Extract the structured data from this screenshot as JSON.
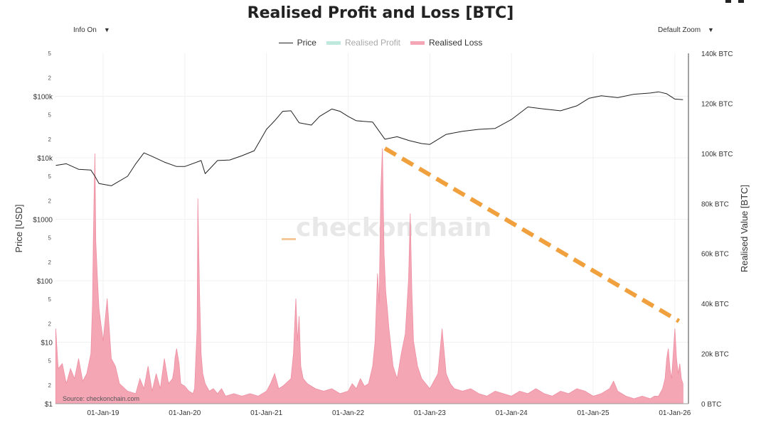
{
  "page": {
    "title": "Realised Profit and Loss [BTC]",
    "info_dropdown": "Info On",
    "zoom_dropdown": "Default Zoom",
    "caret": "▼"
  },
  "colors": {
    "price_line": "#222222",
    "realised_profit": "#bfe9dd",
    "realised_loss": "#f4a6b5",
    "trend_line": "#f0a03c",
    "watermark": "#e8e8e8"
  },
  "chart_data": {
    "type": "area",
    "title": "Realised Profit and Loss [BTC]",
    "legend": [
      "Price",
      "Realised Profit",
      "Realised Loss"
    ],
    "legend_placement": "top-center",
    "watermark": "checkonchain",
    "source": "Source: checkonchain.com",
    "x_axis": {
      "ticks": [
        "01-Jan-19",
        "01-Jan-20",
        "01-Jan-21",
        "01-Jan-22",
        "01-Jan-23",
        "01-Jan-24",
        "01-Jan-25",
        "01-Jan-26"
      ],
      "range": [
        "2018-06-01",
        "2026-03-01"
      ]
    },
    "y_left": {
      "label": "Price [USD]",
      "scale": "log",
      "range": [
        1,
        500000
      ],
      "major_ticks": [
        "$1",
        "$10",
        "$100",
        "$1000",
        "$10k",
        "$100k"
      ],
      "minor_ticks": [
        "2",
        "5"
      ]
    },
    "y_right": {
      "label": "Realised Value [BTC]",
      "range": [
        0,
        140000
      ],
      "ticks": [
        "0 BTC",
        "20k BTC",
        "40k BTC",
        "60k BTC",
        "80k BTC",
        "100k BTC",
        "120k BTC",
        "140k BTC"
      ]
    },
    "series": [
      {
        "name": "Price",
        "axis": "left",
        "x": [
          2018.42,
          2018.55,
          2018.7,
          2018.85,
          2018.9,
          2018.95,
          2019.1,
          2019.3,
          2019.4,
          2019.5,
          2019.6,
          2019.75,
          2019.9,
          2020.0,
          2020.2,
          2020.25,
          2020.4,
          2020.55,
          2020.7,
          2020.85,
          2021.0,
          2021.1,
          2021.2,
          2021.3,
          2021.4,
          2021.55,
          2021.65,
          2021.8,
          2021.9,
          2022.0,
          2022.1,
          2022.3,
          2022.45,
          2022.6,
          2022.75,
          2022.9,
          2023.0,
          2023.2,
          2023.4,
          2023.6,
          2023.8,
          2024.0,
          2024.2,
          2024.4,
          2024.6,
          2024.8,
          2024.95,
          2025.1,
          2025.3,
          2025.5,
          2025.7,
          2025.8,
          2025.9,
          2026.0,
          2026.1
        ],
        "values": [
          7500,
          8000,
          6500,
          6300,
          5000,
          3800,
          3500,
          5000,
          8000,
          12000,
          10500,
          8500,
          7200,
          7200,
          9000,
          5500,
          9000,
          9200,
          10800,
          13000,
          29000,
          40000,
          57000,
          58000,
          37000,
          34000,
          47000,
          62000,
          57000,
          47000,
          40000,
          38000,
          20000,
          22000,
          19000,
          17000,
          16500,
          24000,
          27000,
          29000,
          30000,
          42000,
          67000,
          62000,
          58000,
          70000,
          93000,
          102000,
          95000,
          108000,
          113000,
          118000,
          110000,
          90000,
          88000
        ]
      },
      {
        "name": "Realised Profit",
        "axis": "right",
        "x": [],
        "values": []
      },
      {
        "name": "Realised Loss",
        "axis": "right",
        "x": [
          2018.42,
          2018.45,
          2018.5,
          2018.55,
          2018.6,
          2018.65,
          2018.7,
          2018.75,
          2018.8,
          2018.85,
          2018.87,
          2018.88,
          2018.89,
          2018.9,
          2018.91,
          2018.93,
          2018.95,
          2019.0,
          2019.05,
          2019.1,
          2019.15,
          2019.2,
          2019.3,
          2019.4,
          2019.45,
          2019.5,
          2019.55,
          2019.6,
          2019.65,
          2019.7,
          2019.75,
          2019.8,
          2019.85,
          2019.87,
          2019.88,
          2019.9,
          2019.93,
          2019.95,
          2020.0,
          2020.05,
          2020.1,
          2020.12,
          2020.15,
          2020.16,
          2020.18,
          2020.2,
          2020.22,
          2020.25,
          2020.3,
          2020.35,
          2020.4,
          2020.45,
          2020.5,
          2020.6,
          2020.7,
          2020.8,
          2020.9,
          2021.0,
          2021.05,
          2021.1,
          2021.15,
          2021.2,
          2021.3,
          2021.33,
          2021.36,
          2021.38,
          2021.4,
          2021.42,
          2021.45,
          2021.5,
          2021.6,
          2021.7,
          2021.8,
          2021.9,
          2022.0,
          2022.05,
          2022.1,
          2022.15,
          2022.2,
          2022.25,
          2022.3,
          2022.33,
          2022.36,
          2022.38,
          2022.4,
          2022.42,
          2022.44,
          2022.46,
          2022.48,
          2022.5,
          2022.55,
          2022.6,
          2022.65,
          2022.7,
          2022.74,
          2022.76,
          2022.78,
          2022.8,
          2022.85,
          2022.9,
          2022.95,
          2023.0,
          2023.1,
          2023.15,
          2023.2,
          2023.25,
          2023.3,
          2023.4,
          2023.5,
          2023.6,
          2023.7,
          2023.8,
          2023.9,
          2024.0,
          2024.1,
          2024.2,
          2024.3,
          2024.4,
          2024.5,
          2024.6,
          2024.7,
          2024.8,
          2024.9,
          2025.0,
          2025.1,
          2025.2,
          2025.25,
          2025.3,
          2025.4,
          2025.5,
          2025.6,
          2025.7,
          2025.75,
          2025.8,
          2025.85,
          2025.88,
          2025.9,
          2025.92,
          2025.94,
          2025.96,
          2025.98,
          2026.0,
          2026.02,
          2026.04,
          2026.06,
          2026.08,
          2026.1
        ],
        "values": [
          30000,
          14000,
          16000,
          8000,
          14000,
          10000,
          18000,
          9000,
          12000,
          20000,
          40000,
          65000,
          85000,
          100000,
          65000,
          50000,
          38000,
          25000,
          42000,
          18000,
          15000,
          8000,
          5000,
          4000,
          10000,
          6000,
          15000,
          5000,
          12000,
          6000,
          18000,
          8000,
          10000,
          14000,
          18000,
          22000,
          16000,
          8000,
          7000,
          5000,
          4000,
          6000,
          30000,
          82000,
          45000,
          20000,
          12000,
          8000,
          5000,
          6000,
          4000,
          6000,
          3000,
          4000,
          3000,
          4000,
          3000,
          5000,
          8000,
          12000,
          6000,
          7000,
          10000,
          20000,
          42000,
          25000,
          35000,
          15000,
          10000,
          8000,
          6000,
          5000,
          6000,
          4000,
          5000,
          8000,
          6000,
          10000,
          7000,
          8000,
          15000,
          25000,
          52000,
          40000,
          85000,
          102000,
          60000,
          45000,
          38000,
          30000,
          15000,
          10000,
          20000,
          28000,
          50000,
          76000,
          45000,
          25000,
          15000,
          10000,
          8000,
          6000,
          12000,
          30000,
          12000,
          8000,
          6000,
          5000,
          6000,
          4000,
          3000,
          5000,
          4000,
          3000,
          5000,
          4000,
          6000,
          4000,
          3000,
          5000,
          4000,
          6000,
          5000,
          3000,
          4000,
          6000,
          9000,
          5000,
          3000,
          2000,
          3000,
          2000,
          3000,
          3000,
          6000,
          10000,
          18000,
          22000,
          14000,
          10000,
          20000,
          30000,
          18000,
          12000,
          16000,
          10000,
          8000
        ]
      }
    ],
    "annotations": [
      {
        "type": "dashed-trendline",
        "color": "#f0a03c",
        "from": [
          2022.45,
          102000
        ],
        "to": [
          2026.05,
          33000
        ]
      }
    ]
  }
}
